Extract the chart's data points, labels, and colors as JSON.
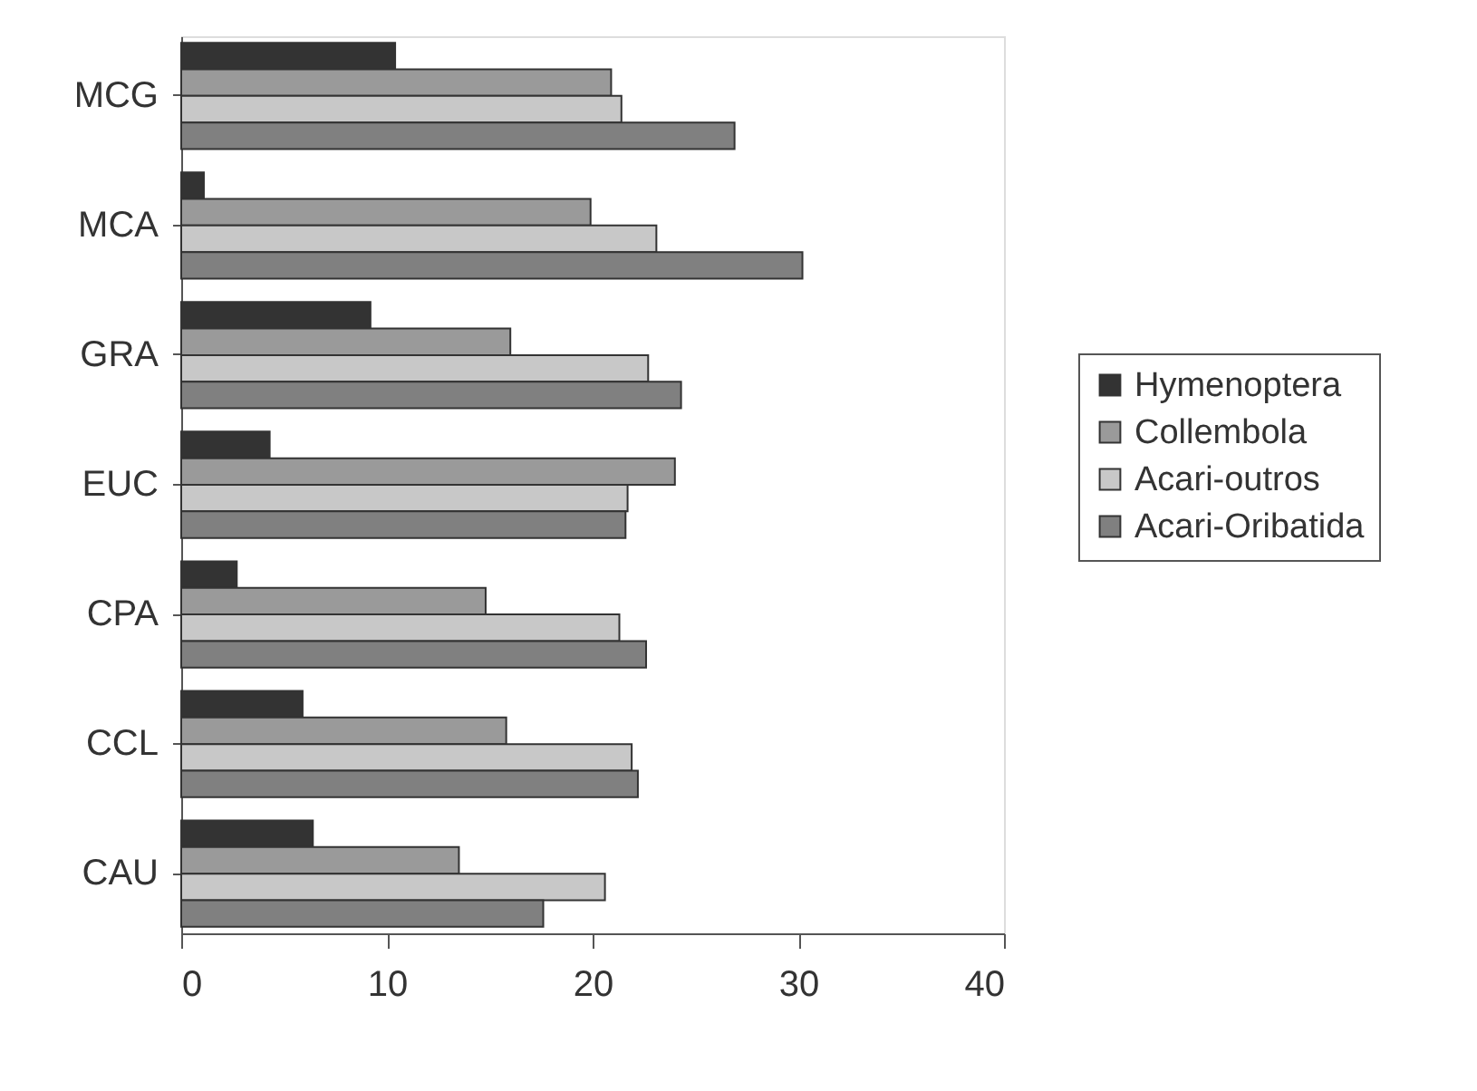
{
  "chart_data": {
    "type": "bar",
    "orientation": "horizontal",
    "categories": [
      "MCG",
      "MCA",
      "GRA",
      "EUC",
      "CPA",
      "CCL",
      "CAU"
    ],
    "series": [
      {
        "name": "Hymenoptera",
        "color": "#333333",
        "values": [
          10.4,
          1.1,
          9.2,
          4.3,
          2.7,
          5.9,
          6.4
        ]
      },
      {
        "name": "Collembola",
        "color": "#9a9a9a",
        "values": [
          20.9,
          19.9,
          16.0,
          24.0,
          14.8,
          15.8,
          13.5
        ]
      },
      {
        "name": "Acari-outros",
        "color": "#c8c8c8",
        "values": [
          21.4,
          23.1,
          22.7,
          21.7,
          21.3,
          21.9,
          20.6
        ]
      },
      {
        "name": "Acari-Oribatida",
        "color": "#808080",
        "values": [
          26.9,
          30.2,
          24.3,
          21.6,
          22.6,
          22.2,
          17.6
        ]
      }
    ],
    "xlim": [
      0,
      40
    ],
    "xticks": [
      0,
      10,
      20,
      30,
      40
    ],
    "grid": false,
    "legend": "right"
  }
}
